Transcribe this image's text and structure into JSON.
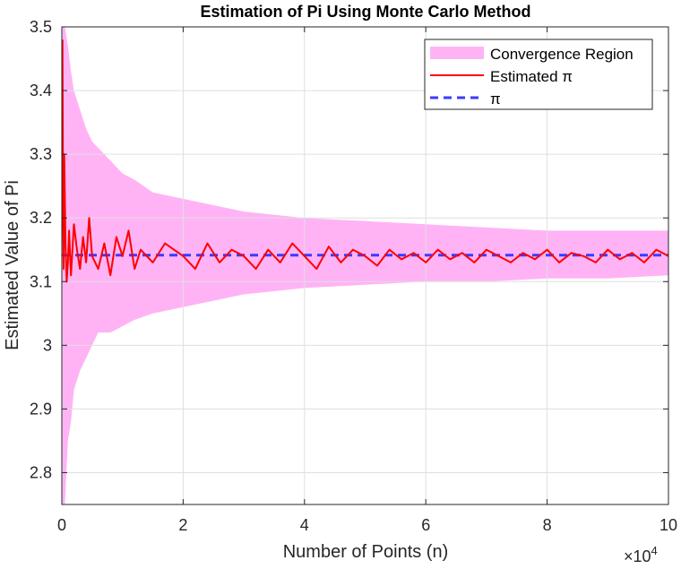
{
  "chart_data": {
    "type": "line",
    "title": "Estimation of Pi Using Monte Carlo Method",
    "xlabel": "Number of Points (n)",
    "ylabel": "Estimated Value of Pi",
    "x_exponent_label": "×10",
    "x_exponent_power": "4",
    "xlim": [
      0,
      100000
    ],
    "ylim": [
      2.75,
      3.5
    ],
    "xticks": [
      0,
      20000,
      40000,
      60000,
      80000,
      100000
    ],
    "xtick_labels": [
      "0",
      "2",
      "4",
      "6",
      "8",
      "10"
    ],
    "yticks": [
      2.8,
      2.9,
      3.0,
      3.1,
      3.2,
      3.3,
      3.4,
      3.5
    ],
    "ytick_labels": [
      "2.8",
      "2.9",
      "3",
      "3.1",
      "3.2",
      "3.3",
      "3.4",
      "3.5"
    ],
    "grid": true,
    "legend": {
      "placement": "top-right",
      "entries": [
        "Convergence Region",
        "Estimated π",
        "π"
      ]
    },
    "colors": {
      "band": "#ffb3f5",
      "estimate": "#ff0000",
      "reference": "#3b3bff",
      "grid": "#dfdfdf",
      "axis": "#262626"
    },
    "series": [
      {
        "name": "Convergence Region",
        "kind": "band",
        "x": [
          100,
          500,
          1000,
          1500,
          2000,
          3000,
          4000,
          5000,
          6000,
          8000,
          10000,
          12000,
          15000,
          20000,
          25000,
          30000,
          40000,
          50000,
          60000,
          70000,
          80000,
          90000,
          100000
        ],
        "upper": [
          3.5,
          3.5,
          3.47,
          3.43,
          3.4,
          3.37,
          3.34,
          3.32,
          3.31,
          3.29,
          3.27,
          3.26,
          3.24,
          3.23,
          3.22,
          3.21,
          3.2,
          3.195,
          3.19,
          3.185,
          3.18,
          3.18,
          3.18
        ],
        "lower": [
          2.75,
          2.75,
          2.85,
          2.88,
          2.93,
          2.96,
          2.98,
          3.0,
          3.02,
          3.02,
          3.03,
          3.04,
          3.05,
          3.06,
          3.07,
          3.08,
          3.09,
          3.095,
          3.1,
          3.1,
          3.105,
          3.105,
          3.11
        ]
      },
      {
        "name": "Estimated π",
        "kind": "line",
        "x": [
          100,
          200,
          300,
          400,
          600,
          800,
          1000,
          1200,
          1500,
          2000,
          2500,
          3000,
          3500,
          4000,
          4500,
          5000,
          6000,
          7000,
          8000,
          9000,
          10000,
          11000,
          12000,
          13000,
          15000,
          17000,
          20000,
          22000,
          24000,
          26000,
          28000,
          30000,
          32000,
          34000,
          36000,
          38000,
          40000,
          42000,
          44000,
          46000,
          48000,
          50000,
          52000,
          54000,
          56000,
          58000,
          60000,
          62000,
          64000,
          66000,
          68000,
          70000,
          72000,
          74000,
          76000,
          78000,
          80000,
          82000,
          84000,
          86000,
          88000,
          90000,
          92000,
          94000,
          96000,
          98000,
          100000
        ],
        "y": [
          3.48,
          3.2,
          3.12,
          3.3,
          3.16,
          3.1,
          3.13,
          3.18,
          3.11,
          3.19,
          3.15,
          3.12,
          3.17,
          3.13,
          3.2,
          3.14,
          3.12,
          3.16,
          3.11,
          3.17,
          3.14,
          3.18,
          3.12,
          3.15,
          3.13,
          3.16,
          3.14,
          3.12,
          3.16,
          3.13,
          3.15,
          3.14,
          3.12,
          3.15,
          3.13,
          3.16,
          3.14,
          3.12,
          3.155,
          3.13,
          3.15,
          3.14,
          3.125,
          3.15,
          3.135,
          3.145,
          3.13,
          3.15,
          3.135,
          3.145,
          3.13,
          3.15,
          3.14,
          3.13,
          3.145,
          3.135,
          3.15,
          3.13,
          3.145,
          3.14,
          3.13,
          3.15,
          3.135,
          3.145,
          3.13,
          3.15,
          3.14
        ]
      },
      {
        "name": "π",
        "kind": "reference",
        "value": 3.14159
      }
    ]
  }
}
